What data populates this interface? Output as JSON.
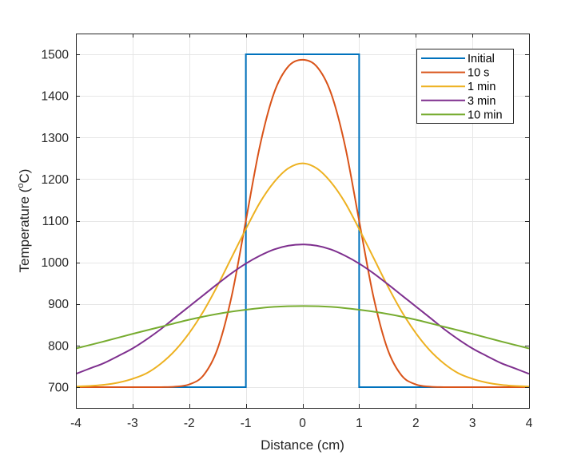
{
  "chart_data": {
    "type": "line",
    "title": "",
    "xlabel": "Distance (cm)",
    "ylabel_main": "Temperature (",
    "ylabel_sup": "o",
    "ylabel_end": "C)",
    "xlim": [
      -4,
      4
    ],
    "ylim": [
      650,
      1550
    ],
    "xticks": [
      -4,
      -3,
      -2,
      -1,
      0,
      1,
      2,
      3,
      4
    ],
    "xtick_labels": [
      "-4",
      "-3",
      "-2",
      "-1",
      "0",
      "1",
      "2",
      "3",
      "4"
    ],
    "yticks": [
      700,
      800,
      900,
      1000,
      1100,
      1200,
      1300,
      1400,
      1500
    ],
    "ytick_labels": [
      "700",
      "800",
      "900",
      "1000",
      "1100",
      "1200",
      "1300",
      "1400",
      "1500"
    ],
    "grid": true,
    "legend_position": "top-right",
    "series": [
      {
        "name": "Initial",
        "color": "#0072BD",
        "x": [
          -4,
          -1,
          -1,
          1,
          1,
          4
        ],
        "y": [
          700,
          700,
          1500,
          1500,
          700,
          700
        ]
      },
      {
        "name": "10 s",
        "color": "#D95319",
        "x": [
          -4,
          -3.5,
          -3,
          -2.5,
          -2.25,
          -2,
          -1.75,
          -1.5,
          -1.25,
          -1,
          -0.75,
          -0.5,
          -0.25,
          0,
          0.25,
          0.5,
          0.75,
          1,
          1.25,
          1.5,
          1.75,
          2,
          2.25,
          2.5,
          3,
          3.5,
          4
        ],
        "y": [
          700,
          700,
          700,
          700,
          701,
          706.5,
          728,
          792,
          919,
          1100,
          1281,
          1408,
          1471,
          1487,
          1471,
          1408,
          1281,
          1100,
          919,
          792,
          728,
          706.5,
          701,
          700,
          700,
          700,
          700
        ]
      },
      {
        "name": "1 min",
        "color": "#EDB120",
        "x": [
          -4,
          -3.75,
          -3.5,
          -3.25,
          -3,
          -2.75,
          -2.5,
          -2.25,
          -2,
          -1.75,
          -1.5,
          -1.25,
          -1,
          -0.75,
          -0.5,
          -0.25,
          0,
          0.25,
          0.5,
          0.75,
          1,
          1.25,
          1.5,
          1.75,
          2,
          2.25,
          2.5,
          2.75,
          3,
          3.25,
          3.5,
          3.75,
          4
        ],
        "y": [
          701.4,
          702.8,
          705.6,
          711,
          720,
          733.5,
          756.5,
          788,
          830,
          882,
          944,
          1012,
          1080,
          1144,
          1193,
          1226,
          1238,
          1226,
          1193,
          1144,
          1080,
          1012,
          944,
          882,
          830,
          788,
          756.5,
          733.5,
          720,
          711,
          705.6,
          702.8,
          701.4
        ]
      },
      {
        "name": "3 min",
        "color": "#7E2F8E",
        "x": [
          -4,
          -3.75,
          -3.5,
          -3.25,
          -3,
          -2.75,
          -2.5,
          -2.25,
          -2,
          -1.75,
          -1.5,
          -1.25,
          -1,
          -0.75,
          -0.5,
          -0.25,
          0,
          0.25,
          0.5,
          0.75,
          1,
          1.25,
          1.5,
          1.75,
          2,
          2.25,
          2.5,
          2.75,
          3,
          3.25,
          3.5,
          3.75,
          4
        ],
        "y": [
          732,
          745,
          758,
          775,
          793,
          815,
          839.5,
          867,
          894,
          921,
          948,
          974,
          997,
          1016,
          1031,
          1040,
          1043,
          1040,
          1031,
          1016,
          997,
          974,
          948,
          921,
          894,
          867,
          839.5,
          815,
          793,
          775,
          758,
          745,
          732
        ]
      },
      {
        "name": "10 min",
        "color": "#77AC30",
        "x": [
          -4,
          -3.5,
          -3,
          -2.5,
          -2,
          -1.5,
          -1,
          -0.5,
          0,
          0.5,
          1,
          1.5,
          2,
          2.5,
          3,
          3.5,
          4
        ],
        "y": [
          793,
          810,
          828,
          845,
          862,
          876,
          886,
          893,
          895,
          893,
          886,
          876,
          862,
          845,
          828,
          810,
          793
        ]
      }
    ]
  }
}
